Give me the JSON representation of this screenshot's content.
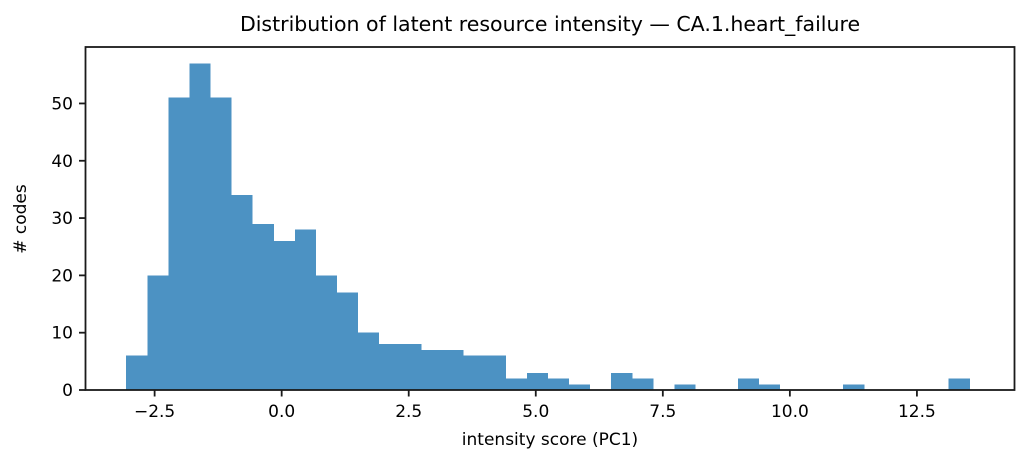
{
  "chart_data": {
    "type": "bar",
    "subtype": "histogram",
    "title": "Distribution of latent resource intensity — CA.1.heart_failure",
    "xlabel": "intensity score (PC1)",
    "ylabel": "# codes",
    "bin_start": -3.06,
    "bin_width": 0.415,
    "counts": [
      6,
      20,
      51,
      57,
      51,
      34,
      29,
      26,
      28,
      20,
      17,
      10,
      8,
      8,
      7,
      7,
      6,
      6,
      2,
      3,
      2,
      1,
      0,
      3,
      2,
      0,
      1,
      0,
      0,
      2,
      1,
      0,
      0,
      0,
      1,
      0,
      0,
      0,
      0,
      2
    ],
    "xlim": [
      -3.86,
      14.42
    ],
    "ylim": [
      0,
      59.85
    ],
    "x_ticks": [
      -2.5,
      0,
      2.5,
      5,
      7.5,
      10,
      12.5
    ],
    "x_tick_labels": [
      "−2.5",
      "0.0",
      "2.5",
      "5.0",
      "7.5",
      "10.0",
      "12.5"
    ],
    "y_ticks": [
      0,
      10,
      20,
      30,
      40,
      50
    ],
    "y_tick_labels": [
      "0",
      "10",
      "20",
      "30",
      "40",
      "50"
    ],
    "grid": "off",
    "legend": "none",
    "bar_color": "#4c92c3",
    "axis_color": "#1a1a1a",
    "text_color": "#000000"
  }
}
